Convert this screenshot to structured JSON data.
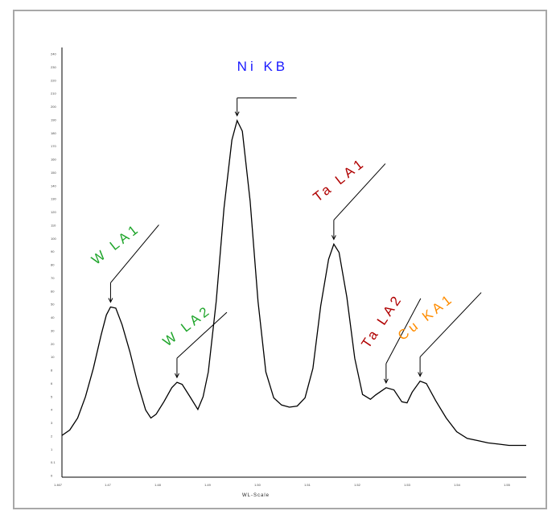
{
  "chart_data": {
    "type": "line",
    "xlabel": "WL-Scale",
    "ylabel": "",
    "x_ticks": [
      "1.467",
      "1.47",
      "1.48",
      "1.49",
      "1.50",
      "1.51",
      "1.52",
      "1.53",
      "1.54",
      "1.55"
    ],
    "y_ticks": [
      "0",
      "0.1",
      "1",
      "2",
      "3",
      "4",
      "5",
      "6",
      "8",
      "10",
      "20",
      "30",
      "40",
      "50",
      "60",
      "70",
      "80",
      "90",
      "100",
      "110",
      "120",
      "130",
      "140",
      "150",
      "160",
      "170",
      "180",
      "190",
      "200",
      "210",
      "220",
      "230",
      "240"
    ],
    "xlim": [
      1.4665,
      1.5553
    ],
    "series": [
      {
        "values": [
          [
            1.4665,
            2.0
          ],
          [
            1.468,
            2.6
          ],
          [
            1.4695,
            4.2
          ],
          [
            1.471,
            8.0
          ],
          [
            1.4725,
            15.0
          ],
          [
            1.474,
            26.0
          ],
          [
            1.475,
            34.0
          ],
          [
            1.4758,
            37.5
          ],
          [
            1.4768,
            37.0
          ],
          [
            1.478,
            30.0
          ],
          [
            1.4795,
            20.0
          ],
          [
            1.481,
            11.0
          ],
          [
            1.4825,
            5.5
          ],
          [
            1.4835,
            4.2
          ],
          [
            1.4845,
            4.8
          ],
          [
            1.486,
            7.0
          ],
          [
            1.4875,
            10.0
          ],
          [
            1.4885,
            11.3
          ],
          [
            1.4895,
            10.8
          ],
          [
            1.491,
            8.0
          ],
          [
            1.4925,
            5.6
          ],
          [
            1.4935,
            8.0
          ],
          [
            1.4945,
            14.0
          ],
          [
            1.496,
            40.0
          ],
          [
            1.4975,
            95.0
          ],
          [
            1.499,
            150.0
          ],
          [
            1.5,
            168.0
          ],
          [
            1.501,
            158.0
          ],
          [
            1.5025,
            100.0
          ],
          [
            1.504,
            40.0
          ],
          [
            1.5055,
            14.0
          ],
          [
            1.507,
            7.8
          ],
          [
            1.5085,
            6.4
          ],
          [
            1.51,
            6.0
          ],
          [
            1.5115,
            6.2
          ],
          [
            1.513,
            7.8
          ],
          [
            1.5145,
            15.0
          ],
          [
            1.516,
            38.0
          ],
          [
            1.5175,
            62.0
          ],
          [
            1.5185,
            71.0
          ],
          [
            1.5195,
            66.0
          ],
          [
            1.521,
            42.0
          ],
          [
            1.5225,
            18.0
          ],
          [
            1.524,
            8.5
          ],
          [
            1.5255,
            7.5
          ],
          [
            1.5265,
            8.4
          ],
          [
            1.5285,
            10.0
          ],
          [
            1.53,
            9.5
          ],
          [
            1.5315,
            7.0
          ],
          [
            1.5325,
            6.8
          ],
          [
            1.5335,
            9.0
          ],
          [
            1.535,
            11.6
          ],
          [
            1.5362,
            11.0
          ],
          [
            1.538,
            7.2
          ],
          [
            1.54,
            4.2
          ],
          [
            1.542,
            2.4
          ],
          [
            1.544,
            1.7
          ],
          [
            1.546,
            1.5
          ],
          [
            1.548,
            1.3
          ],
          [
            1.55,
            1.2
          ],
          [
            1.552,
            1.1
          ],
          [
            1.5553,
            1.1
          ]
        ]
      }
    ],
    "annotations": [
      {
        "text": "W LA1",
        "x": 1.4758,
        "y": 37.5,
        "color": "#1fa52b"
      },
      {
        "text": "W LA2",
        "x": 1.4885,
        "y": 11.3,
        "color": "#1fa52b"
      },
      {
        "text": "Ni KB",
        "x": 1.5,
        "y": 168.0,
        "color": "#1a1aff"
      },
      {
        "text": "Ta LA1",
        "x": 1.5185,
        "y": 71.0,
        "color": "#b00000"
      },
      {
        "text": "Ta LA2",
        "x": 1.5285,
        "y": 10.0,
        "color": "#b00000"
      },
      {
        "text": "Cu KA1",
        "x": 1.535,
        "y": 11.6,
        "color": "#ff8c00"
      }
    ]
  }
}
